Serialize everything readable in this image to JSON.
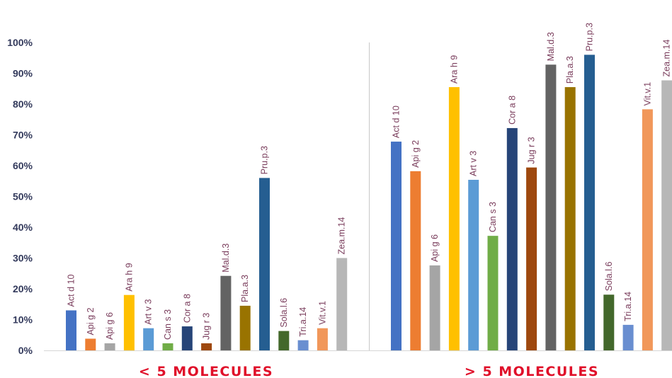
{
  "chart_data": {
    "type": "bar",
    "y_ticks": [
      "0%",
      "10%",
      "20%",
      "30%",
      "40%",
      "50%",
      "60%",
      "70%",
      "80%",
      "90%",
      "100%"
    ],
    "ylim": [
      0,
      100
    ],
    "grid": false,
    "groups": [
      {
        "name": "< 5 MOLECULES",
        "bars": [
          {
            "label": "Act d 10",
            "value": 13,
            "color": "#4472c4"
          },
          {
            "label": "Api g 2",
            "value": 3.8,
            "color": "#ed7d31"
          },
          {
            "label": "Api g 6",
            "value": 2.3,
            "color": "#a5a5a5"
          },
          {
            "label": "Ara h 9",
            "value": 18,
            "color": "#ffc000"
          },
          {
            "label": "Art v 3",
            "value": 7.2,
            "color": "#5b9bd5"
          },
          {
            "label": "Can s 3",
            "value": 2.3,
            "color": "#70ad47"
          },
          {
            "label": "Cor a 8",
            "value": 7.8,
            "color": "#264478"
          },
          {
            "label": "Jug r 3",
            "value": 2.3,
            "color": "#9e480e"
          },
          {
            "label": "Mal.d.3",
            "value": 24.2,
            "color": "#636363"
          },
          {
            "label": "Pla.a.3",
            "value": 14.5,
            "color": "#997300"
          },
          {
            "label": "Pru.p.3",
            "value": 56,
            "color": "#255e91"
          },
          {
            "label": "Sola.l.6",
            "value": 6.3,
            "color": "#43682b"
          },
          {
            "label": "Tri.a.14",
            "value": 3.3,
            "color": "#698ed0"
          },
          {
            "label": "Vit.v.1",
            "value": 7.2,
            "color": "#f1975a"
          },
          {
            "label": "Zea.m.14",
            "value": 30,
            "color": "#b7b7b7"
          }
        ]
      },
      {
        "name": "> 5 MOLECULES",
        "bars": [
          {
            "label": "Act d 10",
            "value": 67.8,
            "color": "#4472c4"
          },
          {
            "label": "Api g 2",
            "value": 58.2,
            "color": "#ed7d31"
          },
          {
            "label": "Api g 6",
            "value": 27.6,
            "color": "#a5a5a5"
          },
          {
            "label": "Ara h 9",
            "value": 85.5,
            "color": "#ffc000"
          },
          {
            "label": "Art v 3",
            "value": 55.4,
            "color": "#5b9bd5"
          },
          {
            "label": "Can s 3",
            "value": 37.2,
            "color": "#70ad47"
          },
          {
            "label": "Cor a 8",
            "value": 72.2,
            "color": "#264478"
          },
          {
            "label": "Jug r 3",
            "value": 59.4,
            "color": "#9e480e"
          },
          {
            "label": "Mal.d.3",
            "value": 92.8,
            "color": "#636363"
          },
          {
            "label": "Pla.a.3",
            "value": 85.5,
            "color": "#997300"
          },
          {
            "label": "Pru.p.3",
            "value": 96,
            "color": "#255e91"
          },
          {
            "label": "Sola.l.6",
            "value": 18.1,
            "color": "#43682b"
          },
          {
            "label": "Tri.a.14",
            "value": 8.3,
            "color": "#698ed0"
          },
          {
            "label": "Vit.v.1",
            "value": 78.3,
            "color": "#f1975a"
          },
          {
            "label": "Zea.m.14",
            "value": 87.7,
            "color": "#b7b7b7"
          }
        ]
      }
    ],
    "title": "",
    "xlabel": "",
    "ylabel": ""
  }
}
